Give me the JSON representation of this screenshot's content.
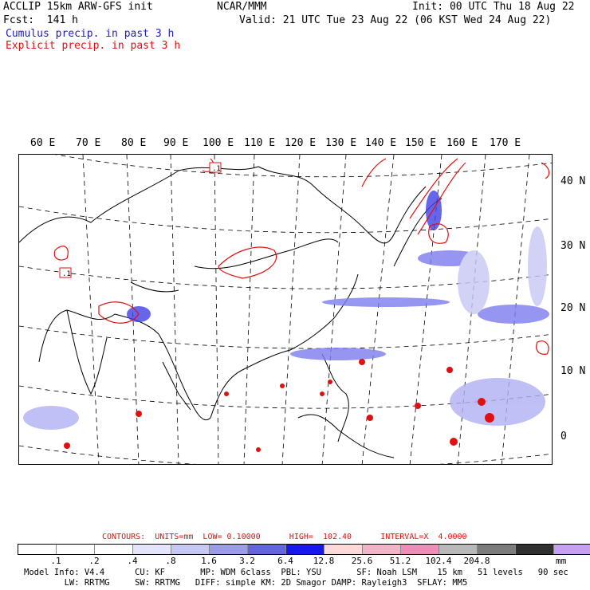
{
  "header": {
    "model": "ACCLIP 15km ARW-GFS init",
    "center": "NCAR/MMM",
    "init": "Init: 00 UTC Thu 18 Aug 22",
    "forecast": "Fcst:  141 h",
    "valid": "Valid: 21 UTC Tue 23 Aug 22 (06 KST Wed 24 Aug 22)",
    "cumulus": "Cumulus precip. in past 3 h",
    "explicit": "Explicit precip. in past 3 h"
  },
  "map": {
    "longitude_labels": [
      "60 E",
      "70 E",
      "80 E",
      "90 E",
      "100 E",
      "110 E",
      "120 E",
      "130 E",
      "140 E",
      "150 E",
      "160 E",
      "170 E"
    ],
    "latitude_labels": [
      "40 N",
      "30 N",
      "20 N",
      "10 N",
      "0"
    ],
    "markers": [
      ".1",
      ".1"
    ]
  },
  "legend": {
    "contours": "CONTOURS:  UNITS=mm  LOW= 0.10000      HIGH=  102.40      INTERVAL=X  4.0000",
    "colors": [
      "#ffffff",
      "#ffffff",
      "#ffffff",
      "#e4e4fa",
      "#c8c8f4",
      "#9c9cec",
      "#6464e0",
      "#1818e8",
      "#ffd8d8",
      "#f4b4c8",
      "#f08cb8",
      "#b8b8b8",
      "#7c7c7c",
      "#303030",
      "#c8a0f0"
    ],
    "tick_labels": [
      ".1",
      ".2",
      ".4",
      ".8",
      "1.6",
      "3.2",
      "6.4",
      "12.8",
      "25.6",
      "51.2",
      "102.4",
      "204.8"
    ],
    "units": "mm"
  },
  "info": {
    "line1": "Model Info: V4.4      CU: KF       MP: WDM 6class  PBL: YSU       SF: Noah LSM    15 km   51 levels   90 sec",
    "line2": "        LW: RRTMG     SW: RRTMG   DIFF: simple KM: 2D Smagor DAMP: Rayleigh3  SFLAY: MM5"
  }
}
